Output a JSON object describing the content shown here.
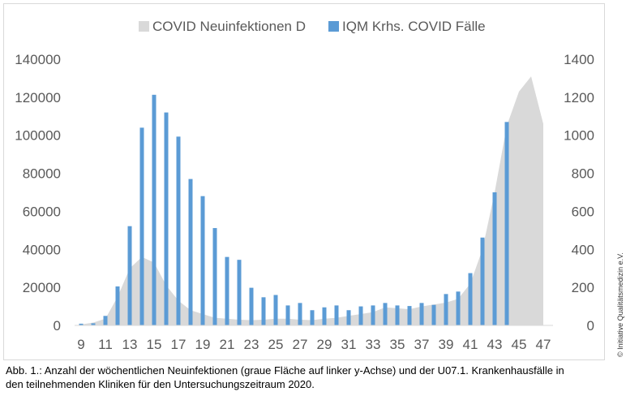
{
  "chart_data": {
    "type": "bar+area",
    "x": [
      9,
      10,
      11,
      12,
      13,
      14,
      15,
      16,
      17,
      18,
      19,
      20,
      21,
      22,
      23,
      24,
      25,
      26,
      27,
      28,
      29,
      30,
      31,
      32,
      33,
      34,
      35,
      36,
      37,
      38,
      39,
      40,
      41,
      42,
      43,
      44,
      45,
      46,
      47
    ],
    "xticks": [
      "9",
      "11",
      "13",
      "15",
      "17",
      "19",
      "21",
      "23",
      "25",
      "27",
      "29",
      "31",
      "33",
      "35",
      "37",
      "39",
      "41",
      "43",
      "45",
      "47"
    ],
    "y_left": {
      "ticks": [
        "0",
        "20000",
        "40000",
        "60000",
        "80000",
        "100000",
        "120000",
        "140000"
      ],
      "ylim": [
        0,
        140000
      ]
    },
    "y_right": {
      "ticks": [
        "0",
        "200",
        "400",
        "600",
        "800",
        "1000",
        "1200",
        "1400"
      ],
      "ylim": [
        0,
        1400
      ]
    },
    "series": [
      {
        "name": "COVID Neuinfektionen D",
        "type": "area",
        "axis": "left",
        "color": "#d9d9d9",
        "values": [
          500,
          1500,
          3500,
          15000,
          30000,
          36000,
          33000,
          21000,
          13000,
          8000,
          6000,
          4000,
          3500,
          3000,
          2800,
          3000,
          3500,
          3500,
          3000,
          2800,
          3500,
          4000,
          5000,
          6000,
          7000,
          9500,
          9000,
          8500,
          10000,
          11000,
          12000,
          14000,
          22000,
          40000,
          70000,
          105000,
          123000,
          131000,
          106000
        ]
      },
      {
        "name": "IQM Krhs. COVID Fälle",
        "type": "bar",
        "axis": "right",
        "color": "#5b9bd5",
        "values": [
          9,
          11,
          50,
          205,
          522,
          1040,
          1213,
          1120,
          993,
          770,
          680,
          512,
          360,
          345,
          198,
          148,
          160,
          105,
          118,
          80,
          95,
          105,
          80,
          100,
          105,
          118,
          105,
          102,
          118,
          108,
          165,
          178,
          275,
          462,
          700,
          1070,
          null,
          null,
          null
        ]
      }
    ],
    "legend_position": "top",
    "grid": false
  },
  "caption_line1": "Abb. 1.: Anzahl der wöchentlichen Neuinfektionen (graue Fläche auf linker y-Achse) und der U07.1. Krankenhausfälle in",
  "caption_line2": "den teilnehmenden Kliniken für den Untersuchungszeitraum 2020.",
  "copyright": "© Initiative Qualitätsmedizin e.V."
}
